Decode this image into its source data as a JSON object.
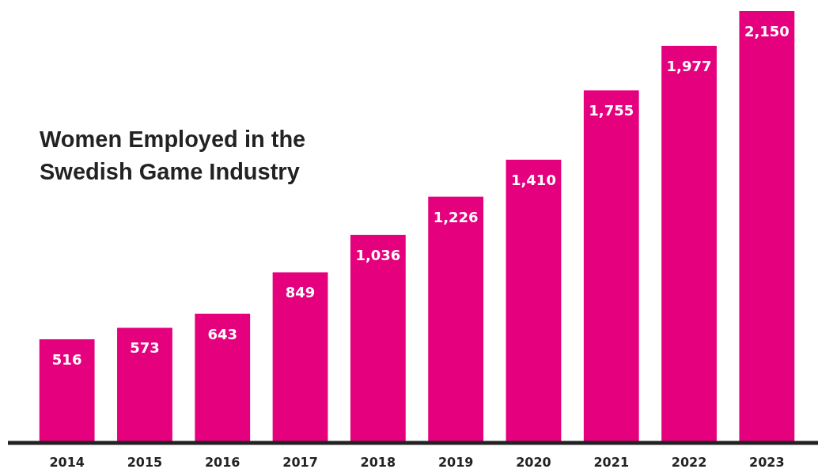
{
  "chart_data": {
    "type": "bar",
    "title": "Women Employed in the Swedish Game Industry",
    "categories": [
      "2014",
      "2015",
      "2016",
      "2017",
      "2018",
      "2019",
      "2020",
      "2021",
      "2022",
      "2023"
    ],
    "values": [
      516,
      573,
      643,
      849,
      1036,
      1226,
      1410,
      1755,
      1977,
      2150
    ],
    "value_labels": [
      "516",
      "573",
      "643",
      "849",
      "1,036",
      "1,226",
      "1,410",
      "1,755",
      "1,977",
      "2,150"
    ],
    "color": "#e5007e"
  }
}
